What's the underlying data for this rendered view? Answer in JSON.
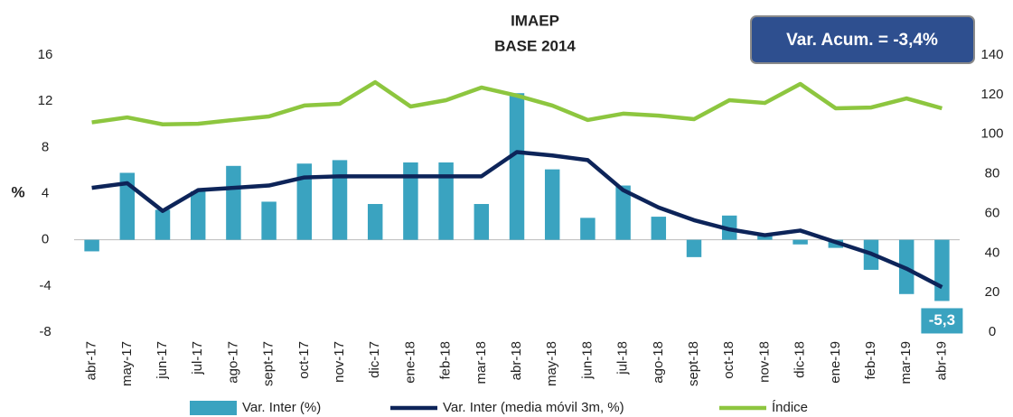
{
  "chart_data": {
    "type": "bar_line",
    "title": "IMAEP",
    "subtitle": "BASE 2014",
    "y_label": "%",
    "annotation": "Var. Acum. = -3,4%",
    "categories": [
      "abr-17",
      "may-17",
      "jun-17",
      "jul-17",
      "ago-17",
      "sept-17",
      "oct-17",
      "nov-17",
      "dic-17",
      "ene-18",
      "feb-18",
      "mar-18",
      "abr-18",
      "may-18",
      "jun-18",
      "jul-18",
      "ago-18",
      "sept-18",
      "oct-18",
      "nov-18",
      "dic-18",
      "ene-19",
      "feb-19",
      "mar-19",
      "abr-19"
    ],
    "series": [
      {
        "name": "Var. Inter (%)",
        "type": "bar",
        "color": "#3aa3c0",
        "values": [
          -1.0,
          5.8,
          2.6,
          4.2,
          6.4,
          3.3,
          6.6,
          6.9,
          3.1,
          6.7,
          6.7,
          3.1,
          12.7,
          6.1,
          1.9,
          4.7,
          2.0,
          -1.5,
          2.1,
          0.5,
          -0.4,
          -0.7,
          -2.6,
          -4.7,
          -5.3
        ],
        "value_labels": [
          null,
          null,
          null,
          null,
          null,
          null,
          null,
          null,
          null,
          null,
          null,
          null,
          null,
          null,
          null,
          null,
          null,
          null,
          null,
          null,
          null,
          null,
          null,
          null,
          "-5,3"
        ]
      },
      {
        "name": "Var. Inter (media móvil 3m, %)",
        "type": "line",
        "color": "#0d2459",
        "values": [
          4.5,
          4.9,
          2.5,
          4.3,
          4.5,
          4.7,
          5.4,
          5.5,
          5.5,
          5.5,
          5.5,
          5.5,
          7.6,
          7.3,
          6.9,
          4.3,
          2.8,
          1.7,
          0.9,
          0.4,
          0.8,
          -0.2,
          -1.2,
          -2.5,
          -4.1
        ]
      },
      {
        "name": "Índice",
        "type": "line",
        "color": "#8dc63f",
        "axis": "y2",
        "values": [
          106,
          108.5,
          105,
          105.3,
          107.2,
          109,
          114.5,
          115.4,
          126.3,
          114,
          117.2,
          123.6,
          119.5,
          114.5,
          107.2,
          110.4,
          109.4,
          107.6,
          117.2,
          115.8,
          125.4,
          113.1,
          113.5,
          118.1,
          113.1
        ]
      }
    ],
    "ylim": [
      -8,
      16
    ],
    "yticks": [
      -8,
      -4,
      0,
      4,
      8,
      12,
      16
    ],
    "y2lim": [
      0,
      140
    ],
    "y2ticks": [
      0,
      20,
      40,
      60,
      80,
      100,
      120,
      140
    ],
    "legend": "bottom"
  }
}
